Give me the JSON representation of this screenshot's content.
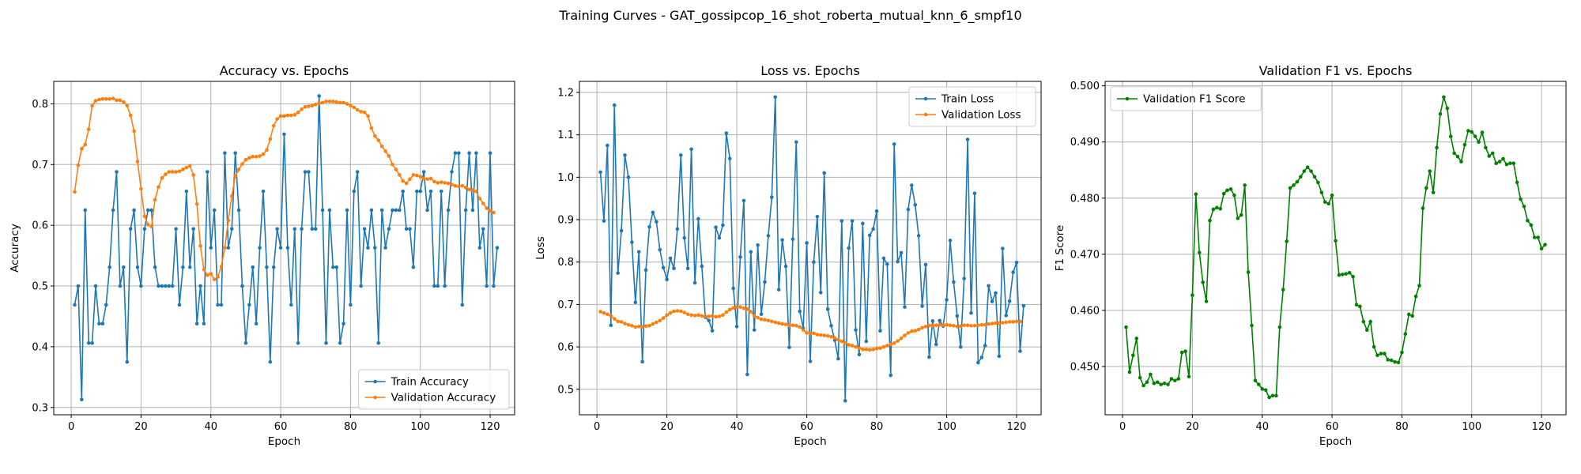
{
  "suptitle": "Training Curves - GAT_gossipcop_16_shot_roberta_mutual_knn_6_smpf10",
  "chart_data": [
    {
      "type": "line",
      "title": "Accuracy vs. Epochs",
      "xlabel": "Epoch",
      "ylabel": "Accuracy",
      "xlim": [
        -5,
        127
      ],
      "ylim": [
        0.288,
        0.837
      ],
      "xticks": [
        0,
        20,
        40,
        60,
        80,
        100,
        120
      ],
      "yticks": [
        0.3,
        0.4,
        0.5,
        0.6,
        0.7,
        0.8
      ],
      "ytick_decimals": 1,
      "grid": true,
      "legend_position": "lower-right",
      "series": [
        {
          "name": "Train Accuracy",
          "color": "#1f77b4",
          "values": [
            0.469,
            0.5,
            0.313,
            0.625,
            0.406,
            0.406,
            0.5,
            0.438,
            0.438,
            0.469,
            0.531,
            0.625,
            0.688,
            0.5,
            0.531,
            0.375,
            0.594,
            0.625,
            0.531,
            0.5,
            0.594,
            0.625,
            0.625,
            0.531,
            0.5,
            0.5,
            0.5,
            0.5,
            0.5,
            0.594,
            0.469,
            0.531,
            0.656,
            0.531,
            0.594,
            0.438,
            0.5,
            0.438,
            0.688,
            0.563,
            0.625,
            0.469,
            0.469,
            0.719,
            0.563,
            0.594,
            0.719,
            0.625,
            0.5,
            0.406,
            0.469,
            0.531,
            0.438,
            0.563,
            0.656,
            0.531,
            0.375,
            0.531,
            0.594,
            0.563,
            0.75,
            0.563,
            0.469,
            0.594,
            0.406,
            0.594,
            0.688,
            0.688,
            0.594,
            0.594,
            0.813,
            0.625,
            0.406,
            0.625,
            0.531,
            0.531,
            0.406,
            0.438,
            0.625,
            0.469,
            0.656,
            0.688,
            0.5,
            0.594,
            0.563,
            0.625,
            0.563,
            0.406,
            0.625,
            0.563,
            0.594,
            0.625,
            0.625,
            0.625,
            0.656,
            0.594,
            0.594,
            0.531,
            0.656,
            0.656,
            0.688,
            0.625,
            0.656,
            0.5,
            0.5,
            0.656,
            0.5,
            0.625,
            0.688,
            0.719,
            0.719,
            0.469,
            0.625,
            0.719,
            0.625,
            0.719,
            0.563,
            0.594,
            0.5,
            0.719,
            0.5,
            0.563
          ]
        },
        {
          "name": "Validation Accuracy",
          "color": "#ff7f0e",
          "values": [
            0.655,
            0.699,
            0.726,
            0.733,
            0.758,
            0.797,
            0.805,
            0.807,
            0.808,
            0.808,
            0.808,
            0.809,
            0.806,
            0.806,
            0.803,
            0.797,
            0.781,
            0.755,
            0.705,
            0.66,
            0.615,
            0.601,
            0.598,
            0.642,
            0.663,
            0.678,
            0.684,
            0.688,
            0.688,
            0.688,
            0.689,
            0.692,
            0.695,
            0.698,
            0.683,
            0.635,
            0.566,
            0.527,
            0.518,
            0.52,
            0.511,
            0.515,
            0.532,
            0.563,
            0.608,
            0.648,
            0.681,
            0.692,
            0.701,
            0.708,
            0.711,
            0.713,
            0.713,
            0.714,
            0.717,
            0.724,
            0.742,
            0.764,
            0.775,
            0.78,
            0.78,
            0.781,
            0.781,
            0.782,
            0.786,
            0.791,
            0.795,
            0.796,
            0.797,
            0.799,
            0.801,
            0.802,
            0.804,
            0.804,
            0.804,
            0.803,
            0.802,
            0.802,
            0.8,
            0.797,
            0.794,
            0.79,
            0.787,
            0.786,
            0.78,
            0.76,
            0.747,
            0.74,
            0.73,
            0.722,
            0.714,
            0.7,
            0.692,
            0.683,
            0.673,
            0.669,
            0.676,
            0.683,
            0.682,
            0.68,
            0.677,
            0.676,
            0.677,
            0.672,
            0.67,
            0.671,
            0.67,
            0.669,
            0.667,
            0.665,
            0.664,
            0.665,
            0.662,
            0.659,
            0.658,
            0.656,
            0.644,
            0.636,
            0.628,
            0.624,
            0.621
          ]
        }
      ]
    },
    {
      "type": "line",
      "title": "Loss vs. Epochs",
      "xlabel": "Epoch",
      "ylabel": "Loss",
      "xlim": [
        -5,
        127
      ],
      "ylim": [
        0.44,
        1.226
      ],
      "xticks": [
        0,
        20,
        40,
        60,
        80,
        100,
        120
      ],
      "yticks": [
        0.5,
        0.6,
        0.7,
        0.8,
        0.9,
        1.0,
        1.1,
        1.2
      ],
      "ytick_decimals": 1,
      "grid": true,
      "legend_position": "top-right",
      "series": [
        {
          "name": "Train Loss",
          "color": "#1f77b4",
          "values": [
            1.012,
            0.897,
            1.075,
            0.651,
            1.17,
            0.774,
            0.874,
            1.052,
            1.0,
            0.847,
            0.705,
            0.824,
            0.565,
            0.781,
            0.883,
            0.917,
            0.895,
            0.829,
            0.787,
            0.759,
            0.809,
            0.785,
            0.878,
            1.052,
            0.857,
            0.785,
            1.066,
            0.751,
            0.902,
            0.79,
            0.67,
            0.662,
            0.638,
            0.882,
            0.857,
            0.887,
            1.104,
            1.044,
            0.738,
            0.648,
            0.812,
            0.945,
            0.535,
            0.824,
            0.64,
            0.84,
            0.677,
            0.753,
            0.862,
            0.953,
            1.189,
            0.735,
            0.852,
            0.79,
            0.599,
            0.854,
            1.083,
            0.684,
            0.644,
            0.845,
            0.566,
            0.8,
            0.907,
            0.728,
            1.01,
            0.689,
            0.65,
            0.616,
            0.572,
            0.897,
            0.473,
            0.833,
            0.897,
            0.64,
            0.582,
            0.891,
            0.613,
            0.863,
            0.878,
            0.92,
            0.638,
            0.809,
            0.795,
            0.533,
            1.078,
            0.801,
            0.822,
            0.694,
            0.924,
            0.981,
            0.935,
            0.862,
            0.696,
            0.794,
            0.576,
            0.661,
            0.606,
            0.662,
            0.649,
            0.711,
            0.851,
            0.753,
            0.673,
            0.6,
            0.761,
            1.089,
            0.68,
            0.962,
            0.563,
            0.575,
            0.603,
            0.744,
            0.707,
            0.727,
            0.578,
            0.832,
            0.674,
            0.708,
            0.776,
            0.799,
            0.59,
            0.697
          ]
        },
        {
          "name": "Validation Loss",
          "color": "#ff7f0e",
          "values": [
            0.683,
            0.68,
            0.677,
            0.673,
            0.666,
            0.66,
            0.659,
            0.655,
            0.652,
            0.65,
            0.647,
            0.648,
            0.647,
            0.649,
            0.65,
            0.654,
            0.658,
            0.662,
            0.668,
            0.675,
            0.68,
            0.684,
            0.685,
            0.684,
            0.681,
            0.677,
            0.675,
            0.674,
            0.675,
            0.673,
            0.672,
            0.672,
            0.673,
            0.671,
            0.672,
            0.675,
            0.682,
            0.688,
            0.692,
            0.693,
            0.694,
            0.691,
            0.689,
            0.683,
            0.673,
            0.669,
            0.665,
            0.664,
            0.662,
            0.66,
            0.658,
            0.656,
            0.654,
            0.653,
            0.651,
            0.651,
            0.65,
            0.647,
            0.64,
            0.633,
            0.632,
            0.632,
            0.629,
            0.628,
            0.627,
            0.626,
            0.624,
            0.621,
            0.617,
            0.613,
            0.609,
            0.605,
            0.603,
            0.6,
            0.597,
            0.594,
            0.594,
            0.593,
            0.594,
            0.596,
            0.597,
            0.6,
            0.603,
            0.606,
            0.609,
            0.614,
            0.62,
            0.627,
            0.633,
            0.637,
            0.638,
            0.641,
            0.645,
            0.648,
            0.65,
            0.651,
            0.651,
            0.652,
            0.651,
            0.652,
            0.651,
            0.65,
            0.648,
            0.649,
            0.651,
            0.651,
            0.65,
            0.65,
            0.651,
            0.652,
            0.652,
            0.654,
            0.655,
            0.656,
            0.656,
            0.657,
            0.658,
            0.659,
            0.659,
            0.66,
            0.66
          ]
        }
      ]
    },
    {
      "type": "line",
      "title": "Validation F1 vs. Epochs",
      "xlabel": "Epoch",
      "ylabel": "F1 Score",
      "xlim": [
        -5,
        127
      ],
      "ylim": [
        0.4414,
        0.5008
      ],
      "xticks": [
        0,
        20,
        40,
        60,
        80,
        100,
        120
      ],
      "yticks": [
        0.45,
        0.46,
        0.47,
        0.48,
        0.49,
        0.5
      ],
      "ytick_decimals": 3,
      "grid": true,
      "legend_position": "top-left",
      "series": [
        {
          "name": "Validation F1 Score",
          "color": "#008000",
          "values": [
            0.457,
            0.449,
            0.452,
            0.455,
            0.448,
            0.4466,
            0.4472,
            0.4486,
            0.447,
            0.4472,
            0.4468,
            0.447,
            0.4468,
            0.4478,
            0.4475,
            0.4478,
            0.4525,
            0.4527,
            0.4482,
            0.4627,
            0.4807,
            0.4703,
            0.465,
            0.4616,
            0.476,
            0.478,
            0.4783,
            0.4781,
            0.4808,
            0.4814,
            0.4816,
            0.4805,
            0.4764,
            0.477,
            0.4823,
            0.4668,
            0.4573,
            0.4475,
            0.4468,
            0.446,
            0.4458,
            0.4445,
            0.4448,
            0.4448,
            0.457,
            0.4637,
            0.4723,
            0.4818,
            0.4823,
            0.4829,
            0.4838,
            0.4848,
            0.4855,
            0.4848,
            0.4838,
            0.4828,
            0.481,
            0.4793,
            0.479,
            0.4805,
            0.4724,
            0.4663,
            0.4664,
            0.4665,
            0.4667,
            0.466,
            0.461,
            0.4607,
            0.458,
            0.4565,
            0.458,
            0.4535,
            0.452,
            0.4523,
            0.4523,
            0.4512,
            0.4511,
            0.4508,
            0.4507,
            0.4525,
            0.4558,
            0.4593,
            0.459,
            0.4625,
            0.4644,
            0.4782,
            0.4818,
            0.4848,
            0.481,
            0.489,
            0.495,
            0.498,
            0.496,
            0.491,
            0.488,
            0.4874,
            0.4865,
            0.4895,
            0.492,
            0.4918,
            0.491,
            0.49,
            0.4917,
            0.489,
            0.4875,
            0.488,
            0.4862,
            0.4865,
            0.487,
            0.486,
            0.4862,
            0.4862,
            0.4828,
            0.4798,
            0.4785,
            0.476,
            0.4752,
            0.473,
            0.473,
            0.471,
            0.4717
          ]
        }
      ]
    }
  ]
}
